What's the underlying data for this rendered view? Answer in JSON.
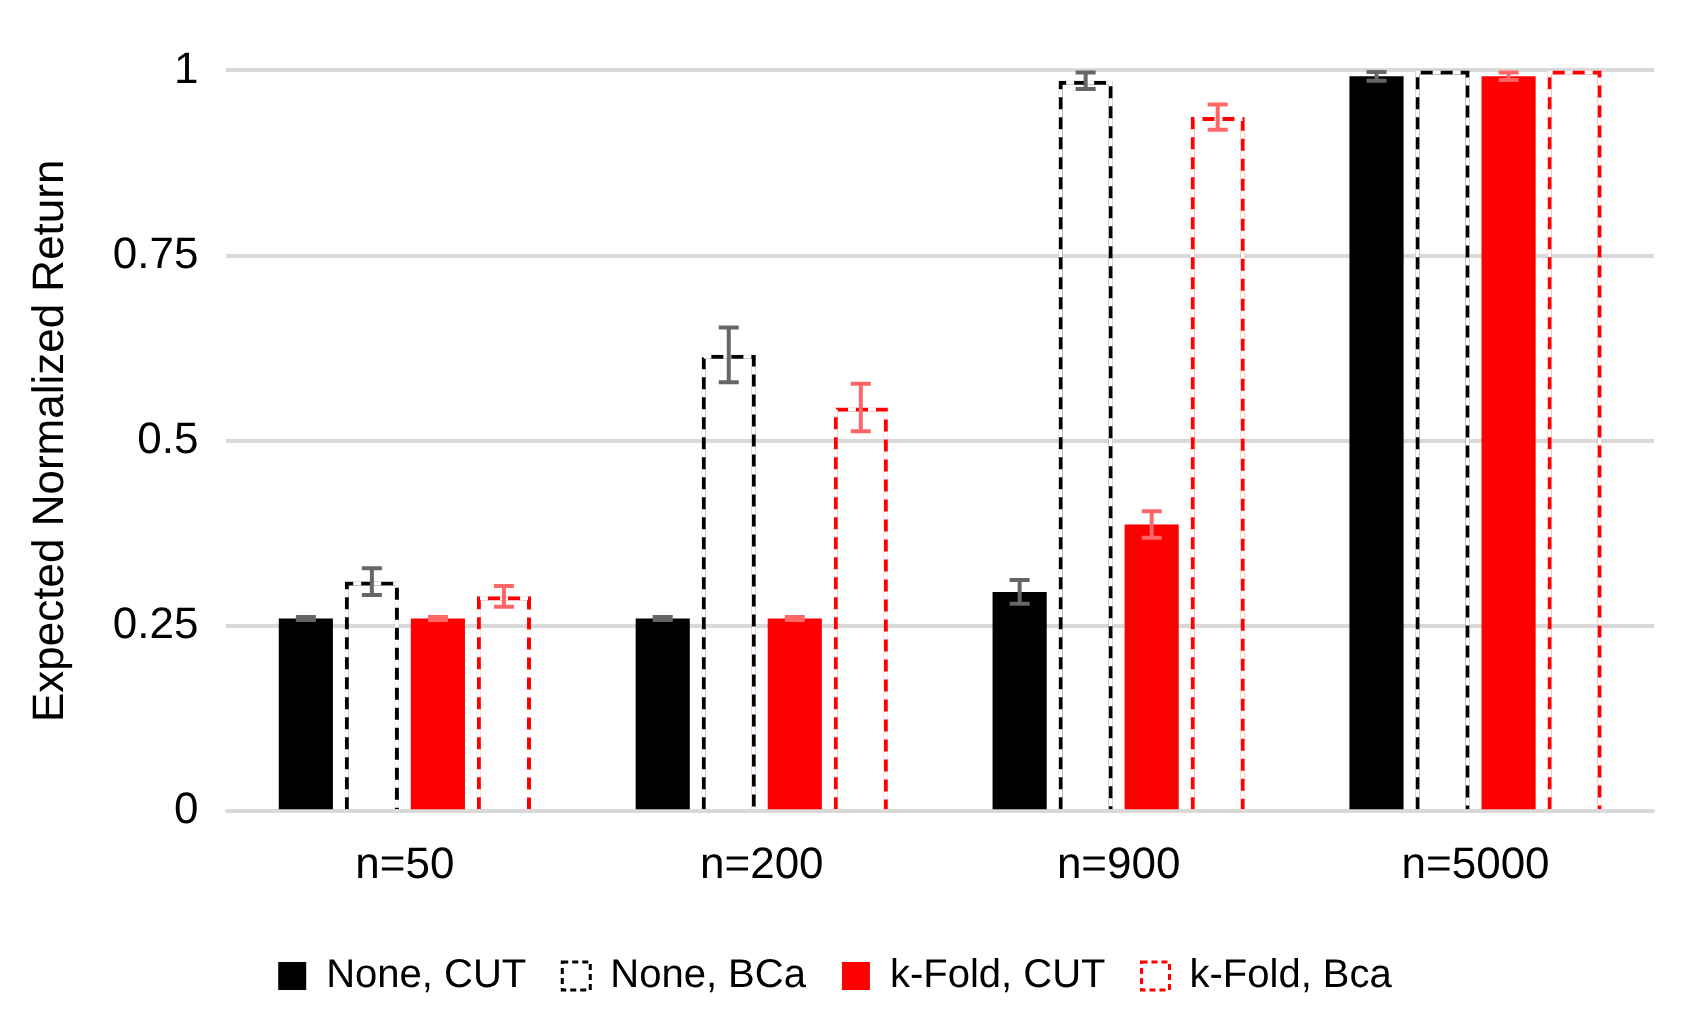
{
  "chart_data": {
    "type": "bar",
    "ylabel": "Expected Normalized Return",
    "categories": [
      "n=50",
      "n=200",
      "n=900",
      "n=5000"
    ],
    "series": [
      {
        "name": "None, CUT",
        "color": "#000000",
        "line_style": "solid",
        "values": [
          0.26,
          0.26,
          0.296,
          0.992
        ],
        "errors": [
          0.002,
          0.002,
          0.016,
          0.006
        ]
      },
      {
        "name": "None, BCa",
        "color": "#000000",
        "line_style": "dashed",
        "values": [
          0.31,
          0.616,
          0.986,
          1.0
        ],
        "errors": [
          0.018,
          0.037,
          0.011,
          null
        ]
      },
      {
        "name": "k-Fold, CUT",
        "color": "#ff0000",
        "line_style": "solid",
        "values": [
          0.26,
          0.26,
          0.387,
          0.992
        ],
        "errors": [
          0.002,
          0.002,
          0.018,
          0.005
        ]
      },
      {
        "name": "k-Fold, Bca",
        "color": "#ff0000",
        "line_style": "dashed",
        "values": [
          0.29,
          0.545,
          0.937,
          1.0
        ],
        "errors": [
          0.014,
          0.032,
          0.017,
          null
        ]
      }
    ],
    "ylim": [
      0,
      1
    ],
    "yticks": [
      0,
      0.25,
      0.5,
      0.75,
      1
    ],
    "grid": "y",
    "legend": "bottom"
  }
}
